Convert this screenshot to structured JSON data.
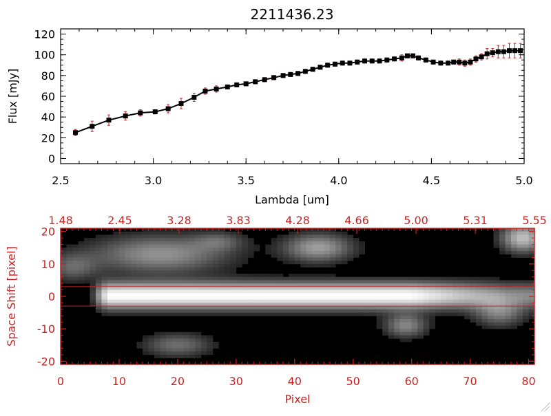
{
  "chart_data": [
    {
      "type": "line",
      "title": "2211436.23",
      "xlabel": "Lambda [um]",
      "ylabel": "Flux [mJy]",
      "xlim": [
        2.5,
        5.0
      ],
      "ylim": [
        -5,
        125
      ],
      "x_ticks": [
        "2.5",
        "3.0",
        "3.5",
        "4.0",
        "4.5",
        "5.0"
      ],
      "x_tick_values": [
        2.5,
        3.0,
        3.5,
        4.0,
        4.5,
        5.0
      ],
      "y_ticks": [
        "0",
        "20",
        "40",
        "60",
        "80",
        "100",
        "120"
      ],
      "y_tick_values": [
        0,
        20,
        40,
        60,
        80,
        100,
        120
      ],
      "grid": false,
      "line_color": "#000000",
      "marker_color": "#000000",
      "errorbar_color": "#cc2222",
      "series": [
        {
          "x": [
            2.58,
            2.67,
            2.76,
            2.85,
            2.93,
            3.01,
            3.08,
            3.15,
            3.22,
            3.28,
            3.34,
            3.4,
            3.45,
            3.5,
            3.55,
            3.6,
            3.65,
            3.7,
            3.74,
            3.78,
            3.82,
            3.86,
            3.9,
            3.94,
            3.98,
            4.02,
            4.06,
            4.1,
            4.14,
            4.18,
            4.22,
            4.26,
            4.3,
            4.34,
            4.37,
            4.4,
            4.43,
            4.47,
            4.51,
            4.55,
            4.59,
            4.62,
            4.65,
            4.68,
            4.71,
            4.74,
            4.77,
            4.8,
            4.83,
            4.86,
            4.89,
            4.92,
            4.95,
            4.98
          ],
          "y": [
            25,
            31,
            37,
            41,
            44,
            45,
            48,
            53,
            59,
            65,
            67,
            69,
            71,
            72,
            74,
            76,
            78,
            80,
            81,
            82,
            84,
            86,
            88,
            90,
            91,
            92,
            92,
            93,
            94,
            94,
            94,
            95,
            96,
            97,
            99,
            99,
            97,
            95,
            93,
            92,
            92,
            93,
            93,
            92,
            93,
            96,
            98,
            101,
            102,
            103,
            103,
            104,
            104,
            104
          ],
          "err": [
            3,
            5,
            5,
            4,
            3,
            2,
            4,
            5,
            4,
            3,
            3,
            2,
            2,
            2,
            2,
            2,
            2,
            2,
            2,
            2,
            2,
            2,
            2,
            2,
            2,
            2,
            2,
            2,
            2,
            2,
            2,
            2,
            2,
            3,
            2,
            2,
            2,
            2,
            2,
            2,
            2,
            2,
            3,
            3,
            3,
            3,
            3,
            5,
            4,
            6,
            6,
            7,
            7,
            7
          ]
        }
      ]
    },
    {
      "type": "heatmap",
      "xlabel": "Pixel",
      "ylabel": "Space Shift [pixel]",
      "xlim": [
        0,
        81
      ],
      "ylim": [
        -21,
        21
      ],
      "x_ticks": [
        "0",
        "10",
        "20",
        "30",
        "40",
        "50",
        "60",
        "70",
        "80"
      ],
      "x_tick_values": [
        0,
        10,
        20,
        30,
        40,
        50,
        60,
        70,
        80
      ],
      "y_ticks": [
        "-20",
        "-10",
        "0",
        "10",
        "20"
      ],
      "y_tick_values": [
        -20,
        -10,
        0,
        10,
        20
      ],
      "top_axis_labels": [
        "1.48",
        "2.45",
        "3.28",
        "3.83",
        "4.28",
        "4.66",
        "5.00",
        "5.31",
        "5.55"
      ],
      "axis_color": "#cc2222",
      "colormap": "grayscale",
      "guide_lines_y": [
        3,
        -3
      ],
      "guide_line_color": "#cc2222",
      "features": [
        {
          "kind": "trace",
          "x_start": 5,
          "x_end": 81,
          "y": 0.2,
          "width": 5.5,
          "peak": 1.0
        },
        {
          "kind": "blob",
          "x": 17,
          "y": 13,
          "sx": 8,
          "sy": 4,
          "amp": 0.5
        },
        {
          "kind": "blob",
          "x": 44,
          "y": 15,
          "sx": 4,
          "sy": 3,
          "amp": 0.55
        },
        {
          "kind": "blob",
          "x": 59,
          "y": -9,
          "sx": 2.5,
          "sy": 2.5,
          "amp": 0.45
        },
        {
          "kind": "blob",
          "x": 20,
          "y": -15,
          "sx": 4,
          "sy": 2.5,
          "amp": 0.35
        },
        {
          "kind": "blob",
          "x": 79,
          "y": 18,
          "sx": 2.5,
          "sy": 3,
          "amp": 0.7
        },
        {
          "kind": "blob",
          "x": 2,
          "y": 9,
          "sx": 3,
          "sy": 3,
          "amp": 0.3
        },
        {
          "kind": "blob",
          "x": 75,
          "y": -5,
          "sx": 3,
          "sy": 3,
          "amp": 0.4
        },
        {
          "kind": "blob",
          "x": 27,
          "y": 17,
          "sx": 3,
          "sy": 2,
          "amp": 0.25
        }
      ]
    }
  ]
}
